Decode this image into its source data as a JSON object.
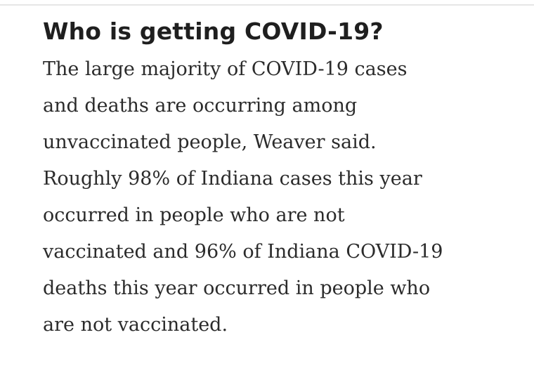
{
  "article": {
    "heading": "Who is getting COVID-19?",
    "paragraph_lines": [
      "The large majority of COVID-19 cases",
      "and deaths are occurring among",
      "unvaccinated people, Weaver said.",
      "Roughly 98% of Indiana cases this year",
      "occurred in people who are not",
      "vaccinated and 96% of Indiana COVID-19",
      "deaths this year occurred in people who",
      "are not vaccinated."
    ]
  }
}
